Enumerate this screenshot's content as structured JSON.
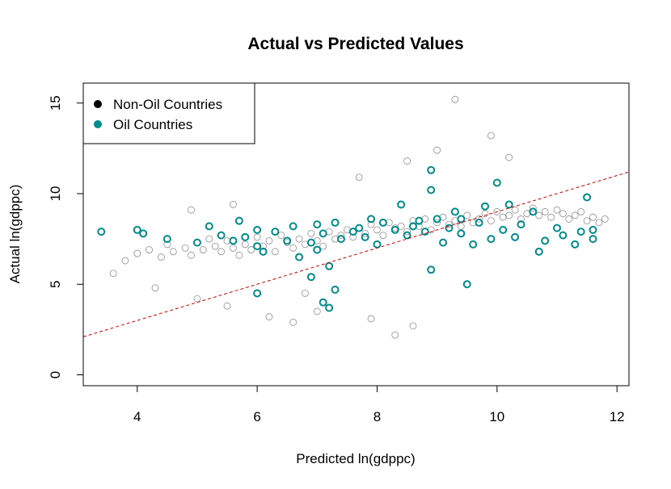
{
  "chart_data": {
    "type": "scatter",
    "title": "Actual vs Predicted Values",
    "xlabel": "Predicted ln(gdppc)",
    "ylabel": "Actual ln(gdppc)",
    "xlim": [
      3.1,
      12.2
    ],
    "ylim": [
      -0.6,
      16.1
    ],
    "x_ticks": [
      4,
      6,
      8,
      10,
      12
    ],
    "y_ticks": [
      0,
      5,
      10,
      15
    ],
    "grid": false,
    "legend_position": "top-left",
    "reference_line": {
      "intercept": -1.0,
      "slope": 1.0,
      "style": "dashed",
      "color": "#cc0000"
    },
    "series": [
      {
        "name": "Non-Oil Countries",
        "color": "#000000",
        "marker": "open-circle",
        "x": [
          3.6,
          3.8,
          4.0,
          4.2,
          4.4,
          4.5,
          4.6,
          4.8,
          4.9,
          5.0,
          5.1,
          5.2,
          5.3,
          5.4,
          5.5,
          5.6,
          5.7,
          5.8,
          5.9,
          6.0,
          6.1,
          6.2,
          6.3,
          6.4,
          6.5,
          6.6,
          6.7,
          6.8,
          6.9,
          7.0,
          7.1,
          7.2,
          7.3,
          7.4,
          7.5,
          7.6,
          7.7,
          7.8,
          7.9,
          8.0,
          8.1,
          8.2,
          8.3,
          8.4,
          8.5,
          8.6,
          8.7,
          8.8,
          8.9,
          9.0,
          9.1,
          9.2,
          9.3,
          9.4,
          9.5,
          9.6,
          9.7,
          9.8,
          9.9,
          10.0,
          10.1,
          10.2,
          10.3,
          10.4,
          10.5,
          10.6,
          10.7,
          10.8,
          10.9,
          11.0,
          11.1,
          11.2,
          11.3,
          11.4,
          11.5,
          11.6,
          11.7,
          11.8,
          4.3,
          5.0,
          5.5,
          6.2,
          6.6,
          7.0,
          7.9,
          8.3,
          8.6,
          9.3,
          9.9,
          10.2,
          8.5,
          7.7,
          9.0,
          6.8,
          5.6,
          4.9
        ],
        "y": [
          5.6,
          6.3,
          6.7,
          6.9,
          6.5,
          7.2,
          6.8,
          7.0,
          6.6,
          7.3,
          6.9,
          7.5,
          7.1,
          6.8,
          7.4,
          7.0,
          6.6,
          7.2,
          6.9,
          7.6,
          7.1,
          7.4,
          6.8,
          7.7,
          7.3,
          7.0,
          7.5,
          7.2,
          7.8,
          7.4,
          7.1,
          7.9,
          7.5,
          7.7,
          8.0,
          7.6,
          8.1,
          7.8,
          8.3,
          8.0,
          7.7,
          8.4,
          8.1,
          8.2,
          7.9,
          8.5,
          8.2,
          8.6,
          8.0,
          8.4,
          8.7,
          8.3,
          8.5,
          8.2,
          8.8,
          8.4,
          8.6,
          8.9,
          8.5,
          9.0,
          8.7,
          8.8,
          9.1,
          8.6,
          8.9,
          9.2,
          8.8,
          9.0,
          8.7,
          9.1,
          8.9,
          8.6,
          8.8,
          9.0,
          8.5,
          8.7,
          8.4,
          8.6,
          4.8,
          4.2,
          3.8,
          3.2,
          2.9,
          3.5,
          3.1,
          2.2,
          2.7,
          15.2,
          13.2,
          12.0,
          11.8,
          10.9,
          12.4,
          4.5,
          9.4,
          9.1
        ],
        "note": "approximate sample of a dense cloud"
      },
      {
        "name": "Oil Countries",
        "color": "#008b8b",
        "marker": "open-circle-bold",
        "x": [
          3.4,
          4.0,
          4.1,
          4.5,
          5.0,
          5.2,
          5.4,
          5.6,
          5.7,
          5.8,
          6.0,
          6.0,
          6.1,
          6.3,
          6.5,
          6.6,
          6.7,
          6.9,
          7.0,
          7.0,
          7.1,
          7.2,
          7.3,
          7.4,
          7.6,
          7.7,
          7.8,
          7.9,
          8.0,
          8.1,
          8.3,
          8.4,
          8.5,
          8.6,
          8.7,
          8.8,
          8.9,
          8.9,
          9.0,
          9.1,
          9.2,
          9.3,
          9.4,
          9.4,
          9.6,
          9.7,
          9.8,
          9.9,
          10.0,
          10.1,
          10.2,
          10.3,
          10.4,
          10.6,
          10.7,
          10.8,
          11.0,
          11.1,
          11.3,
          11.4,
          11.5,
          11.6,
          11.6,
          9.5,
          8.9,
          7.1,
          7.2,
          7.3,
          6.9,
          6.0
        ],
        "y": [
          7.9,
          8.0,
          7.8,
          7.5,
          7.3,
          8.2,
          7.7,
          7.4,
          8.5,
          7.6,
          7.1,
          8.0,
          6.8,
          7.9,
          7.4,
          8.2,
          6.5,
          7.3,
          8.3,
          6.9,
          7.8,
          6.0,
          8.4,
          7.5,
          7.9,
          8.1,
          7.6,
          8.6,
          7.2,
          8.4,
          8.0,
          9.4,
          7.7,
          8.2,
          8.5,
          7.9,
          10.2,
          11.3,
          8.6,
          7.3,
          8.1,
          9.0,
          7.8,
          8.6,
          7.2,
          8.4,
          9.3,
          7.5,
          10.6,
          8.0,
          9.4,
          7.6,
          8.3,
          9.0,
          6.8,
          7.4,
          8.1,
          7.7,
          7.2,
          7.9,
          9.8,
          7.5,
          8.0,
          5.0,
          5.8,
          4.0,
          3.7,
          4.7,
          5.4,
          4.5
        ]
      }
    ]
  }
}
